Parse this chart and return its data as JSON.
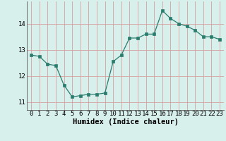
{
  "x": [
    0,
    1,
    2,
    3,
    4,
    5,
    6,
    7,
    8,
    9,
    10,
    11,
    12,
    13,
    14,
    15,
    16,
    17,
    18,
    19,
    20,
    21,
    22,
    23
  ],
  "y": [
    12.8,
    12.75,
    12.45,
    12.4,
    11.65,
    11.2,
    11.25,
    11.3,
    11.3,
    11.35,
    12.55,
    12.8,
    13.45,
    13.45,
    13.6,
    13.6,
    14.5,
    14.2,
    14.0,
    13.9,
    13.75,
    13.5,
    13.5,
    13.4
  ],
  "line_color": "#2a7d6e",
  "marker_color": "#2a7d6e",
  "bg_color": "#d8f0ec",
  "grid_color_h": "#d4a0a0",
  "grid_color_v": "#d4a0a0",
  "xlabel": "Humidex (Indice chaleur)",
  "ylim": [
    10.7,
    14.85
  ],
  "xlim": [
    -0.5,
    23.5
  ],
  "yticks": [
    11,
    12,
    13,
    14
  ],
  "xlabel_fontsize": 7.5,
  "tick_fontsize": 6.5
}
